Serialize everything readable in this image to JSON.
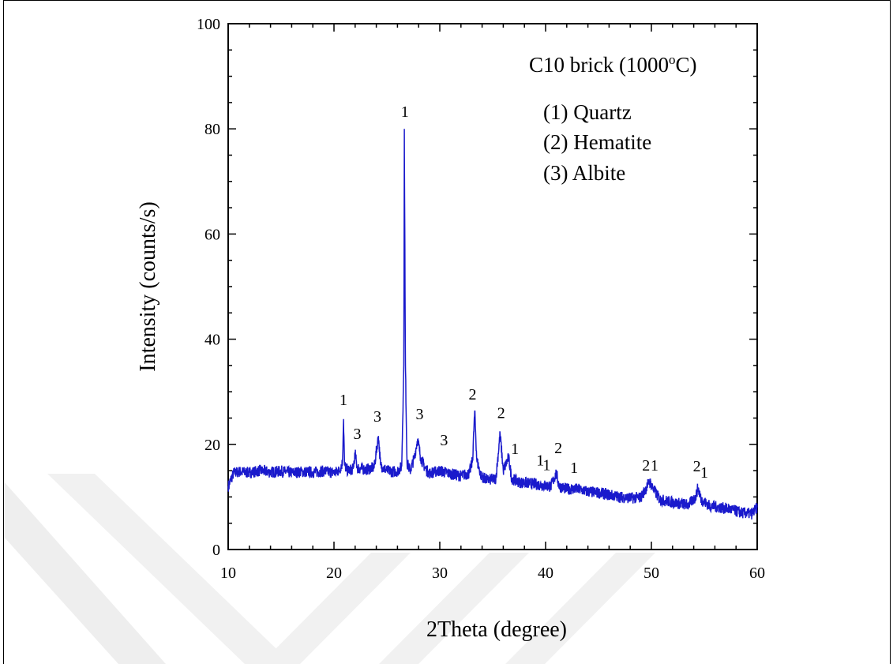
{
  "chart_data": {
    "type": "line",
    "title": "C10 brick (1000",
    "title_sup": "o",
    "title_suffix": "C)",
    "xlabel": "2Theta (degree)",
    "ylabel": "Intensity (counts/s)",
    "xlim": [
      10,
      60
    ],
    "ylim": [
      0,
      100
    ],
    "x_ticks": [
      10,
      20,
      30,
      40,
      50,
      60
    ],
    "y_ticks": [
      0,
      20,
      40,
      60,
      80,
      100
    ],
    "grid": false,
    "series": [
      {
        "color": "#1a1acc",
        "points": [
          [
            10,
            12
          ],
          [
            10.5,
            14.5
          ],
          [
            11,
            14.8
          ],
          [
            12,
            14.6
          ],
          [
            13,
            15.0
          ],
          [
            14,
            14.7
          ],
          [
            15,
            14.9
          ],
          [
            16,
            14.6
          ],
          [
            17,
            14.8
          ],
          [
            18,
            14.7
          ],
          [
            19,
            14.9
          ],
          [
            20,
            14.6
          ],
          [
            20.5,
            15.0
          ],
          [
            20.8,
            16.5
          ],
          [
            20.9,
            24.8
          ],
          [
            21.0,
            16.0
          ],
          [
            21.3,
            15.0
          ],
          [
            21.8,
            15.3
          ],
          [
            22.0,
            18.2
          ],
          [
            22.2,
            15.5
          ],
          [
            23.0,
            15.2
          ],
          [
            23.8,
            15.6
          ],
          [
            24.2,
            21.6
          ],
          [
            24.4,
            16.0
          ],
          [
            25.0,
            15.0
          ],
          [
            25.5,
            14.8
          ],
          [
            26.0,
            14.9
          ],
          [
            26.4,
            15.8
          ],
          [
            26.6,
            35.0
          ],
          [
            26.65,
            80.0
          ],
          [
            26.75,
            35.0
          ],
          [
            26.9,
            16.5
          ],
          [
            27.2,
            15.0
          ],
          [
            27.6,
            17.5
          ],
          [
            27.9,
            21.0
          ],
          [
            28.2,
            17.5
          ],
          [
            28.6,
            15.5
          ],
          [
            29.0,
            14.5
          ],
          [
            30.0,
            15.0
          ],
          [
            31.0,
            14.4
          ],
          [
            32.0,
            14.0
          ],
          [
            32.8,
            14.5
          ],
          [
            33.1,
            17.0
          ],
          [
            33.3,
            26.3
          ],
          [
            33.5,
            17.0
          ],
          [
            33.9,
            14.0
          ],
          [
            34.5,
            13.2
          ],
          [
            35.3,
            13.5
          ],
          [
            35.7,
            22.0
          ],
          [
            36.0,
            15.0
          ],
          [
            36.5,
            17.5
          ],
          [
            36.8,
            13.5
          ],
          [
            37.5,
            12.8
          ],
          [
            38.5,
            12.6
          ],
          [
            39.5,
            12.3
          ],
          [
            40.5,
            12.0
          ],
          [
            41.0,
            14.5
          ],
          [
            41.3,
            12.0
          ],
          [
            42.0,
            11.5
          ],
          [
            43.0,
            11.5
          ],
          [
            44.0,
            11.0
          ],
          [
            45.0,
            10.8
          ],
          [
            46.0,
            10.4
          ],
          [
            47.0,
            10.0
          ],
          [
            48.0,
            9.8
          ],
          [
            49.0,
            9.9
          ],
          [
            49.6,
            12.0
          ],
          [
            49.8,
            13.0
          ],
          [
            50.2,
            11.5
          ],
          [
            50.8,
            9.5
          ],
          [
            51.5,
            9.2
          ],
          [
            52.5,
            8.8
          ],
          [
            53.5,
            8.5
          ],
          [
            54.2,
            10.0
          ],
          [
            54.4,
            11.8
          ],
          [
            54.7,
            9.5
          ],
          [
            55.5,
            8.3
          ],
          [
            56.5,
            8.0
          ],
          [
            57.5,
            7.6
          ],
          [
            58.5,
            7.0
          ],
          [
            59.5,
            6.8
          ],
          [
            60.0,
            8.0
          ]
        ]
      }
    ],
    "peak_labels": [
      {
        "text": "1",
        "x": 20.9,
        "y": 27.5
      },
      {
        "text": "3",
        "x": 22.2,
        "y": 21.0
      },
      {
        "text": "3",
        "x": 24.1,
        "y": 24.3
      },
      {
        "text": "1",
        "x": 26.7,
        "y": 82.3
      },
      {
        "text": "3",
        "x": 28.1,
        "y": 24.8
      },
      {
        "text": "3",
        "x": 30.4,
        "y": 19.8
      },
      {
        "text": "2",
        "x": 33.1,
        "y": 28.5
      },
      {
        "text": "2",
        "x": 35.8,
        "y": 25.0
      },
      {
        "text": "1",
        "x": 37.1,
        "y": 18.2
      },
      {
        "text": "1",
        "x": 39.5,
        "y": 16.0
      },
      {
        "text": "1",
        "x": 40.1,
        "y": 15.1
      },
      {
        "text": "2",
        "x": 41.2,
        "y": 18.3
      },
      {
        "text": "1",
        "x": 42.7,
        "y": 14.6
      },
      {
        "text": "2",
        "x": 49.5,
        "y": 15.0
      },
      {
        "text": "1",
        "x": 50.3,
        "y": 15.0
      },
      {
        "text": "2",
        "x": 54.3,
        "y": 14.9
      },
      {
        "text": "1",
        "x": 55.0,
        "y": 13.7
      }
    ],
    "legend": [
      "(1) Quartz",
      "(2) Hematite",
      "(3) Albite"
    ],
    "legend_placement": "top-right"
  }
}
